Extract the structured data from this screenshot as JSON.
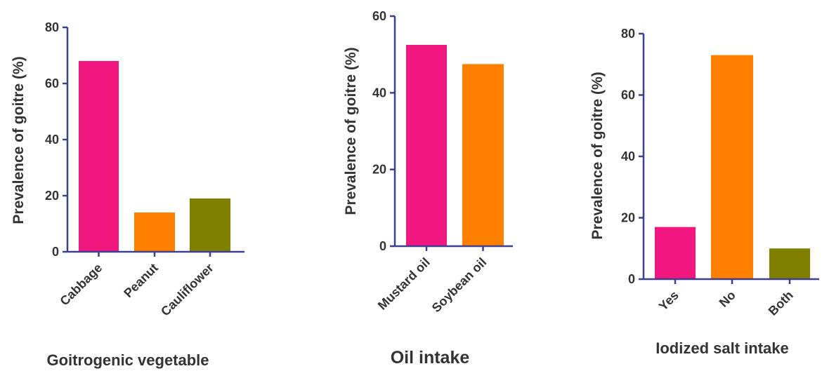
{
  "chart_data": [
    {
      "type": "bar",
      "categories": [
        "Cabbage",
        "Peanut",
        "Cauliflower"
      ],
      "values": [
        68,
        14,
        19
      ],
      "colors": [
        "#f0177f",
        "#ff8000",
        "#808000"
      ],
      "xlabel": "Goitrogenic vegetable",
      "ylabel": "Prevalence of goitre (%)",
      "ylim": [
        0,
        80
      ],
      "yticks": [
        "0",
        "20",
        "40",
        "60",
        "80"
      ],
      "grid": false
    },
    {
      "type": "bar",
      "categories": [
        "Mustard oil",
        "Soybean oil"
      ],
      "values": [
        52.5,
        47.5
      ],
      "colors": [
        "#f0177f",
        "#ff8000"
      ],
      "xlabel": "Oil intake",
      "ylabel": "Prevalence of goitre (%)",
      "ylim": [
        0,
        60
      ],
      "yticks": [
        "0",
        "20",
        "40",
        "60"
      ],
      "grid": false
    },
    {
      "type": "bar",
      "categories": [
        "Yes",
        "No",
        "Both"
      ],
      "values": [
        17,
        73,
        10
      ],
      "colors": [
        "#f0177f",
        "#ff8000",
        "#808000"
      ],
      "xlabel": "Iodized salt intake",
      "ylabel": "Prevalence of goitre (%)",
      "ylim": [
        0,
        80
      ],
      "yticks": [
        "0",
        "20",
        "40",
        "60",
        "80"
      ],
      "grid": false
    }
  ]
}
